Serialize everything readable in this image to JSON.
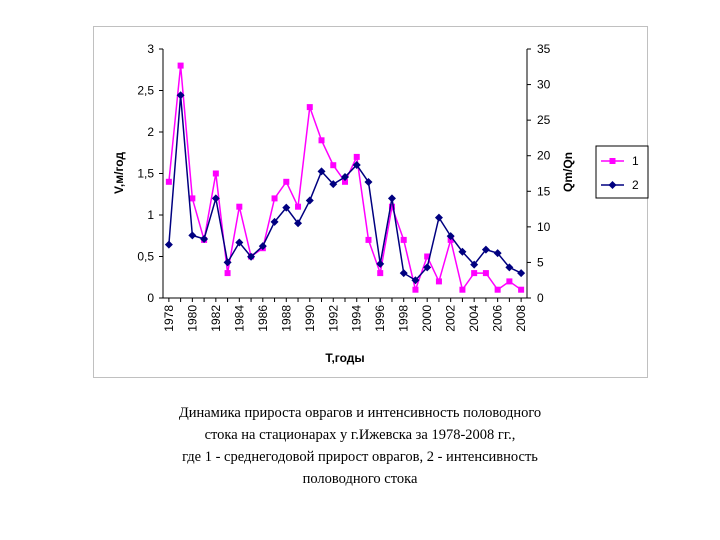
{
  "chart_data": {
    "type": "line",
    "title": "",
    "xlabel": "Т,годы",
    "ylabel_left": "V,м/год",
    "ylabel_right": "Qm/Qn",
    "x_tick_labels": [
      "1978",
      "1980",
      "1982",
      "1984",
      "1986",
      "1988",
      "1990",
      "1992",
      "1994",
      "1996",
      "1998",
      "2000",
      "2002",
      "2004",
      "2006",
      "2008"
    ],
    "y_left_tick_labels": [
      "0",
      "0,5",
      "1",
      "1,5",
      "2",
      "2,5",
      "3"
    ],
    "y_right_tick_labels": [
      "0",
      "5",
      "10",
      "15",
      "20",
      "25",
      "30",
      "35"
    ],
    "ylim_left": [
      0,
      3
    ],
    "ylim_right": [
      0,
      35
    ],
    "xlim": [
      1977.5,
      2008.5
    ],
    "legend_position": "right",
    "series": [
      {
        "name": "1",
        "axis": "left",
        "color": "#ff00ff",
        "marker": "square",
        "x": [
          1978,
          1979,
          1980,
          1981,
          1982,
          1983,
          1984,
          1985,
          1986,
          1987,
          1988,
          1989,
          1990,
          1991,
          1992,
          1993,
          1994,
          1995,
          1996,
          1997,
          1998,
          1999,
          2000,
          2001,
          2002,
          2003,
          2004,
          2005,
          2006,
          2007,
          2008
        ],
        "values": [
          1.4,
          2.8,
          1.2,
          0.7,
          1.5,
          0.3,
          1.1,
          0.5,
          0.6,
          1.2,
          1.4,
          1.1,
          2.3,
          1.9,
          1.6,
          1.4,
          1.7,
          0.7,
          0.3,
          1.1,
          0.7,
          0.1,
          0.5,
          0.2,
          0.7,
          0.1,
          0.3,
          0.3,
          0.1,
          0.2,
          0.1
        ]
      },
      {
        "name": "2",
        "axis": "right",
        "color": "#000080",
        "marker": "diamond",
        "x": [
          1978,
          1979,
          1980,
          1981,
          1982,
          1983,
          1984,
          1985,
          1986,
          1987,
          1988,
          1989,
          1990,
          1991,
          1992,
          1993,
          1994,
          1995,
          1996,
          1997,
          1998,
          1999,
          2000,
          2001,
          2002,
          2003,
          2004,
          2005,
          2006,
          2007,
          2008
        ],
        "values": [
          7.5,
          28.5,
          8.8,
          8.3,
          14,
          5,
          7.8,
          5.8,
          7.3,
          10.7,
          12.7,
          10.5,
          13.7,
          17.8,
          16,
          17,
          18.7,
          16.3,
          4.8,
          14,
          3.5,
          2.5,
          4.3,
          11.3,
          8.7,
          6.5,
          4.7,
          6.8,
          6.3,
          4.3,
          3.5
        ]
      }
    ]
  },
  "caption": {
    "line1": "Динамика прироста оврагов и интенсивность половодного",
    "line2": "стока на стационарах у г.Ижевска за 1978-2008 гг.,",
    "line3": "где 1 - среднегодовой прирост оврагов, 2 - интенсивность",
    "line4": "половодного стока"
  }
}
